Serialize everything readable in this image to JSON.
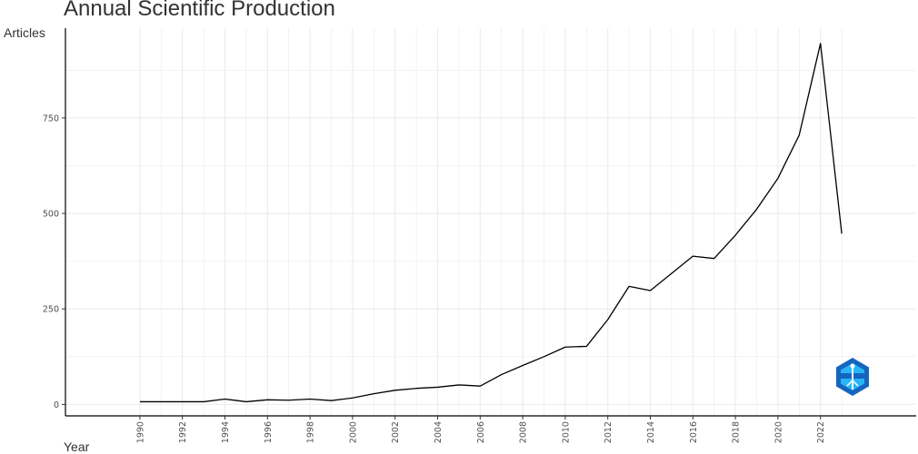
{
  "chart_data": {
    "type": "line",
    "title": "Annual Scientific Production",
    "xlabel": "Year",
    "ylabel": "Articles",
    "x": [
      1990,
      1991,
      1992,
      1993,
      1994,
      1995,
      1996,
      1997,
      1998,
      1999,
      2000,
      2001,
      2002,
      2003,
      2004,
      2005,
      2006,
      2007,
      2008,
      2009,
      2010,
      2011,
      2012,
      2013,
      2014,
      2015,
      2016,
      2017,
      2018,
      2019,
      2020,
      2021,
      2022,
      2023
    ],
    "series": [
      {
        "values": [
          7,
          7,
          7,
          7,
          14,
          7,
          12,
          11,
          14,
          10,
          17,
          28,
          37,
          42,
          45,
          51,
          48,
          78,
          102,
          125,
          150,
          152,
          222,
          309,
          298,
          343,
          388,
          382,
          443,
          511,
          592,
          705,
          945,
          447
        ]
      }
    ],
    "xlim": [
      1986.5,
      2026.5
    ],
    "ylim": [
      -30,
      985
    ],
    "x_ticks": [
      1990,
      1992,
      1994,
      1996,
      1998,
      2000,
      2002,
      2004,
      2006,
      2008,
      2010,
      2012,
      2014,
      2016,
      2018,
      2020,
      2022
    ],
    "y_ticks": [
      0,
      250,
      500,
      750
    ],
    "grid": true,
    "line_color": "#000000",
    "grid_color": "#ebebeb",
    "logo_colors": [
      "#1565c0",
      "#29b6f6"
    ]
  }
}
